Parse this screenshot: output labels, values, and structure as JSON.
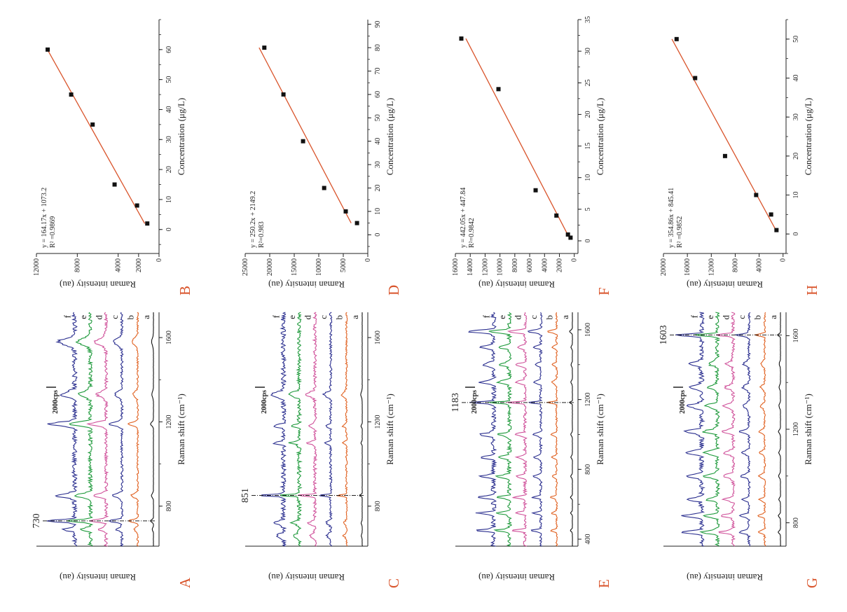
{
  "figure": {
    "panel_color": "#d9542b",
    "label_color": "#222222",
    "background": "#ffffff"
  },
  "chart_data": [
    {
      "id": "A",
      "type": "line",
      "panel_label": "A",
      "xlabel": "Raman shift (cm⁻¹)",
      "ylabel": "Raman intensity (au)",
      "xlim": [
        610,
        1720
      ],
      "xticks": [
        800,
        1200,
        1600
      ],
      "peak_label": "730",
      "peak_x": 730,
      "scale_label": "2000cps",
      "curve_labels": [
        "a",
        "b",
        "c",
        "d",
        "e",
        "f"
      ],
      "curve_colors": [
        "#111111",
        "#e0601f",
        "#2b2f8f",
        "#d0529b",
        "#1f9a3c",
        "#2b2f8f"
      ],
      "peaks": [
        [
          730,
          1.0,
          8
        ],
        [
          850,
          0.7,
          12
        ],
        [
          1190,
          0.95,
          12
        ],
        [
          1330,
          0.5,
          18
        ],
        [
          1580,
          0.6,
          22
        ],
        [
          690,
          0.4,
          10
        ]
      ]
    },
    {
      "id": "B",
      "type": "scatter",
      "panel_label": "B",
      "xlabel": "Concentration (μg/L)",
      "ylabel": "Raman intensity (au)",
      "xlim": [
        -8,
        70
      ],
      "ylim": [
        0,
        12000
      ],
      "xticks": [
        0,
        10,
        20,
        30,
        40,
        50,
        60
      ],
      "yticks": [
        0,
        2000,
        4000,
        8000,
        12000
      ],
      "x": [
        2,
        8,
        15,
        35,
        45,
        60
      ],
      "y": [
        1150,
        2150,
        4350,
        6500,
        8600,
        10900
      ],
      "fit": {
        "slope": 164.17,
        "intercept": 1073.2,
        "x0": 2,
        "x1": 60
      },
      "equation": "y = 164.17x + 1073.2",
      "r2": "R² =0.9869"
    },
    {
      "id": "C",
      "type": "line",
      "panel_label": "C",
      "xlabel": "Raman shift (cm⁻¹)",
      "ylabel": "Raman intensity (au)",
      "xlim": [
        610,
        1720
      ],
      "xticks": [
        800,
        1200,
        1600
      ],
      "peak_label": "851",
      "peak_x": 851,
      "scale_label": "2000cps",
      "curve_labels": [
        "a",
        "b",
        "c",
        "d",
        "e",
        "f"
      ],
      "curve_colors": [
        "#111111",
        "#e0601f",
        "#2b2f8f",
        "#d0529b",
        "#1f9a3c",
        "#2b2f8f"
      ],
      "peaks": [
        [
          851,
          1.0,
          5
        ],
        [
          1100,
          0.4,
          8
        ],
        [
          1180,
          0.4,
          8
        ],
        [
          1330,
          0.5,
          15
        ],
        [
          720,
          0.35,
          10
        ],
        [
          660,
          0.3,
          10
        ]
      ]
    },
    {
      "id": "D",
      "type": "scatter",
      "panel_label": "D",
      "xlabel": "Concentration (μg/L)",
      "ylabel": "Raman intensity (au)",
      "xlim": [
        -8,
        92
      ],
      "ylim": [
        0,
        25000
      ],
      "xticks": [
        0,
        10,
        20,
        30,
        40,
        50,
        60,
        70,
        80,
        90
      ],
      "yticks": [
        0,
        5000,
        10000,
        15000,
        20000,
        25000
      ],
      "x": [
        5,
        10,
        20,
        40,
        60,
        80
      ],
      "y": [
        2200,
        4500,
        8900,
        13200,
        17200,
        21100
      ],
      "fit": {
        "slope": 250.2,
        "intercept": 2149.2,
        "x0": 5,
        "x1": 80
      },
      "equation": "y = 250.2x + 2149.2",
      "r2": "R²=0.983"
    },
    {
      "id": "E",
      "type": "line",
      "panel_label": "E",
      "xlabel": "Raman shift (cm⁻¹)",
      "ylabel": "Raman intensity (au)",
      "xlim": [
        360,
        1700
      ],
      "xticks": [
        400,
        800,
        1200,
        1600
      ],
      "peak_label": "1183",
      "peak_x": 1183,
      "scale_label": "2000cps",
      "curve_labels": [
        "a",
        "b",
        "c",
        "d",
        "e",
        "f"
      ],
      "curve_colors": [
        "#111111",
        "#e0601f",
        "#2b2f8f",
        "#d0529b",
        "#1f9a3c",
        "#2b2f8f"
      ],
      "peaks": [
        [
          1183,
          1.0,
          6
        ],
        [
          1590,
          0.95,
          10
        ],
        [
          450,
          0.7,
          8
        ],
        [
          550,
          0.6,
          8
        ],
        [
          640,
          0.65,
          8
        ],
        [
          760,
          0.55,
          10
        ],
        [
          870,
          0.5,
          10
        ],
        [
          1000,
          0.55,
          10
        ],
        [
          1300,
          0.5,
          12
        ],
        [
          1400,
          0.45,
          12
        ],
        [
          1500,
          0.5,
          10
        ]
      ]
    },
    {
      "id": "F",
      "type": "scatter",
      "panel_label": "F",
      "xlabel": "Concentration (μg/L)",
      "ylabel": "Raman intensity (au)",
      "xlim": [
        -2,
        35
      ],
      "ylim": [
        -500,
        16000
      ],
      "xticks": [
        0,
        5,
        10,
        15,
        20,
        25,
        30,
        35
      ],
      "yticks": [
        0,
        2000,
        4000,
        6000,
        8000,
        10000,
        12000,
        14000,
        16000
      ],
      "x": [
        0.5,
        1,
        4,
        8,
        24,
        32
      ],
      "y": [
        500,
        850,
        2400,
        5200,
        10200,
        15200
      ],
      "fit": {
        "slope": 442.05,
        "intercept": 447.84,
        "x0": 0.5,
        "x1": 32
      },
      "equation": "y = 442.05x + 447.84",
      "r2": "R²=0.9842"
    },
    {
      "id": "G",
      "type": "line",
      "panel_label": "G",
      "xlabel": "Raman shift (cm⁻¹)",
      "ylabel": "Raman intensity (au)",
      "xlim": [
        700,
        1700
      ],
      "xticks": [
        800,
        1200,
        1600
      ],
      "peak_label": "1603",
      "peak_x": 1603,
      "scale_label": "2000cps",
      "curve_labels": [
        "a",
        "b",
        "c",
        "d",
        "e",
        "f"
      ],
      "curve_colors": [
        "#111111",
        "#e0601f",
        "#2b2f8f",
        "#d0529b",
        "#1f9a3c",
        "#2b2f8f"
      ],
      "peaks": [
        [
          1603,
          1.0,
          6
        ],
        [
          760,
          0.75,
          8
        ],
        [
          830,
          0.7,
          8
        ],
        [
          900,
          0.55,
          8
        ],
        [
          1000,
          0.6,
          10
        ],
        [
          1100,
          0.55,
          10
        ],
        [
          1190,
          0.65,
          10
        ],
        [
          1300,
          0.5,
          12
        ],
        [
          1380,
          0.45,
          12
        ],
        [
          1480,
          0.4,
          12
        ]
      ]
    },
    {
      "id": "H",
      "type": "scatter",
      "panel_label": "H",
      "xlabel": "Concentration (μg/L)",
      "ylabel": "Raman intensity (au)",
      "xlim": [
        -5,
        55
      ],
      "ylim": [
        -500,
        20000
      ],
      "xticks": [
        0,
        10,
        20,
        30,
        40,
        50
      ],
      "yticks": [
        0,
        4000,
        8000,
        12000,
        16000,
        20000
      ],
      "x": [
        1,
        5,
        10,
        20,
        40,
        50
      ],
      "y": [
        1100,
        2000,
        4500,
        9700,
        14700,
        17800
      ],
      "fit": {
        "slope": 354.86,
        "intercept": 845.41,
        "x0": 1,
        "x1": 50
      },
      "equation": "y = 354.86x + 845.41",
      "r2": "R² =0.9852"
    }
  ]
}
